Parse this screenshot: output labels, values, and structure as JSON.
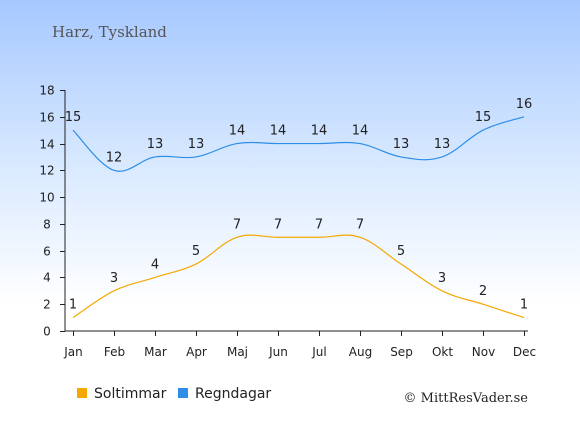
{
  "chart_data": {
    "type": "line",
    "title": "Harz, Tyskland",
    "categories": [
      "Jan",
      "Feb",
      "Mar",
      "Apr",
      "Maj",
      "Jun",
      "Jul",
      "Aug",
      "Sep",
      "Okt",
      "Nov",
      "Dec"
    ],
    "series": [
      {
        "name": "Soltimmar",
        "color": "#f5a800",
        "values": [
          1,
          3,
          4,
          5,
          7,
          7,
          7,
          7,
          5,
          3,
          2,
          1
        ]
      },
      {
        "name": "Regndagar",
        "color": "#2e8ee8",
        "values": [
          15,
          12,
          13,
          13,
          14,
          14,
          14,
          14,
          13,
          13,
          15,
          16
        ]
      }
    ],
    "ylim": [
      0,
      18
    ],
    "yticks": [
      0,
      2,
      4,
      6,
      8,
      10,
      12,
      14,
      16,
      18
    ],
    "grid": false,
    "legend_position": "bottom-left"
  },
  "credit": "© MittResVader.se"
}
